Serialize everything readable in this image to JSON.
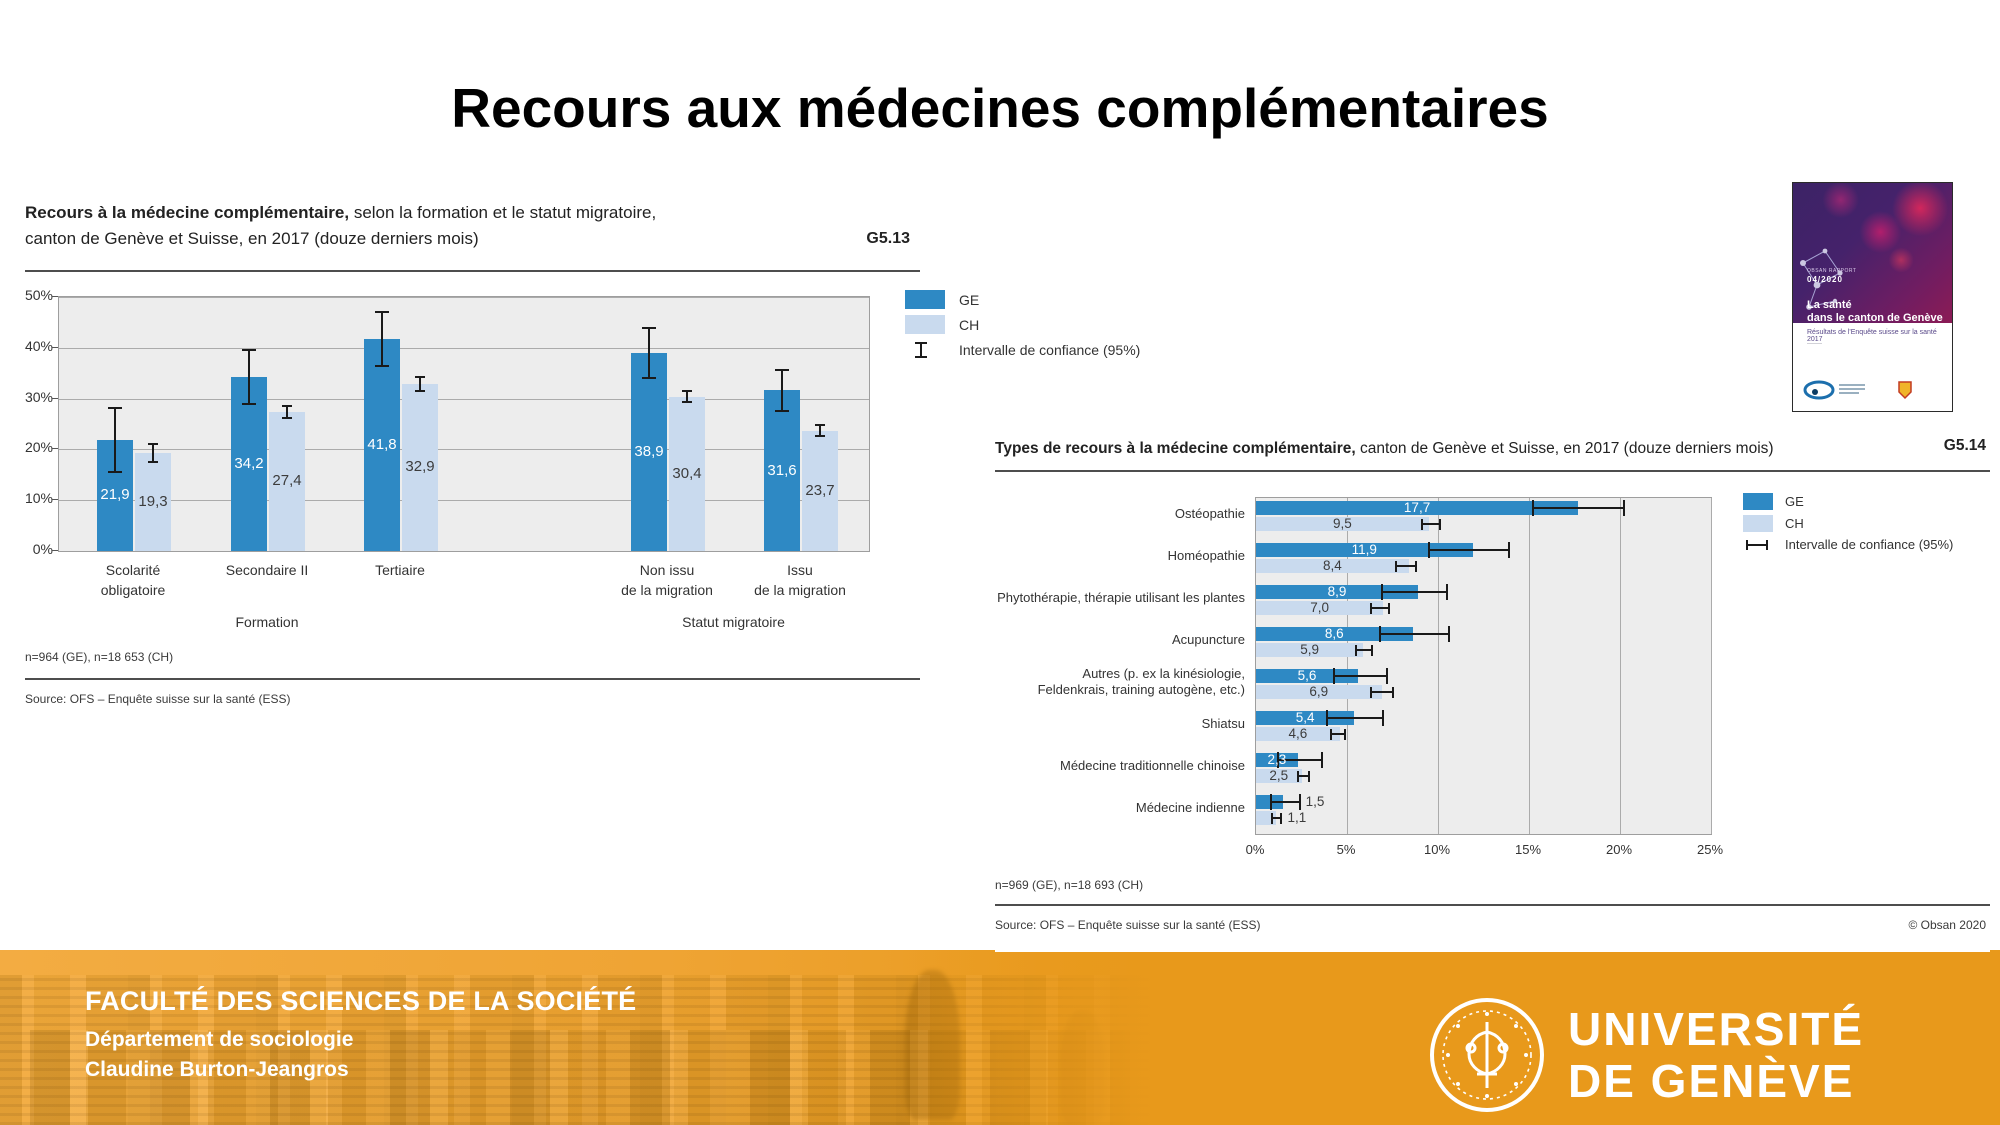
{
  "title": "Recours aux médecines complémentaires",
  "colors": {
    "ge": "#2E89C4",
    "ch": "#C9DAEE",
    "plot_bg": "#EDEDED",
    "grid": "#ABABAB",
    "footer_orange": "#E8991B"
  },
  "chart_data": [
    {
      "id": "G513",
      "type": "bar",
      "title_bold": "Recours à la médecine complémentaire,",
      "title_rest": " selon la formation et le statut migratoire,",
      "title_line2": "canton de Genève et Suisse, en 2017 (douze derniers mois)",
      "figure_id": "G5.13",
      "ylim": [
        0,
        50
      ],
      "yticks": [
        "0%",
        "10%",
        "20%",
        "30%",
        "40%",
        "50%"
      ],
      "categories": [
        [
          "Scolarité",
          "obligatoire"
        ],
        [
          "Secondaire II"
        ],
        [
          "Tertiaire"
        ],
        [
          "Non issu",
          "de la migration"
        ],
        [
          "Issu",
          "de la migration"
        ]
      ],
      "group_labels": [
        {
          "label": "Formation"
        },
        {
          "label": "Statut migratoire"
        }
      ],
      "series": [
        {
          "name": "GE",
          "values": [
            21.9,
            34.2,
            41.8,
            38.9,
            31.6
          ],
          "labels": [
            "21,9",
            "34,2",
            "41,8",
            "38,9",
            "31,6"
          ],
          "ci": [
            [
              15.5,
              28.2
            ],
            [
              29.0,
              39.5
            ],
            [
              36.4,
              47.0
            ],
            [
              34.0,
              43.8
            ],
            [
              27.6,
              35.6
            ]
          ]
        },
        {
          "name": "CH",
          "values": [
            19.3,
            27.4,
            32.9,
            30.4,
            23.7
          ],
          "labels": [
            "19,3",
            "27,4",
            "32,9",
            "30,4",
            "23,7"
          ],
          "ci": [
            [
              17.5,
              21.0
            ],
            [
              26.2,
              28.5
            ],
            [
              31.5,
              34.3
            ],
            [
              29.4,
              31.4
            ],
            [
              22.6,
              24.8
            ]
          ]
        }
      ],
      "legend": [
        {
          "label": "GE"
        },
        {
          "label": "CH"
        },
        {
          "label": "Intervalle de confiance (95%)"
        }
      ],
      "n_note": "n=964 (GE), n=18 653 (CH)",
      "source": "Source: OFS – Enquête suisse sur la santé (ESS)"
    },
    {
      "id": "G514",
      "type": "horizontal-bar",
      "title_bold": "Types de recours à la médecine complémentaire,",
      "title_rest": " canton de Genève et Suisse, en 2017 (douze derniers mois)",
      "figure_id": "G5.14",
      "xlim": [
        0,
        25
      ],
      "xticks": [
        "0%",
        "5%",
        "10%",
        "15%",
        "20%",
        "25%"
      ],
      "categories": [
        [
          "Ostéopathie"
        ],
        [
          "Homéopathie"
        ],
        [
          "Phytothérapie, thérapie utilisant les plantes"
        ],
        [
          "Acupuncture"
        ],
        [
          "Autres (p. ex la kinésiologie,",
          "Feldenkrais, training autogène, etc.)"
        ],
        [
          "Shiatsu"
        ],
        [
          "Médecine traditionnelle chinoise"
        ],
        [
          "Médecine indienne"
        ]
      ],
      "series": [
        {
          "name": "GE",
          "values": [
            17.7,
            11.9,
            8.9,
            8.6,
            5.6,
            5.4,
            2.3,
            1.5
          ],
          "labels": [
            "17,7",
            "11,9",
            "8,9",
            "8,6",
            "5,6",
            "5,4",
            "2,3",
            "1,5"
          ],
          "ci": [
            [
              15.2,
              20.2
            ],
            [
              9.5,
              13.9
            ],
            [
              6.9,
              10.5
            ],
            [
              6.8,
              10.6
            ],
            [
              4.3,
              7.2
            ],
            [
              3.9,
              7.0
            ],
            [
              1.2,
              3.6
            ],
            [
              0.8,
              2.4
            ]
          ]
        },
        {
          "name": "CH",
          "values": [
            9.5,
            8.4,
            7.0,
            5.9,
            6.9,
            4.6,
            2.5,
            1.1
          ],
          "labels": [
            "9,5",
            "8,4",
            "7,0",
            "5,9",
            "6,9",
            "4,6",
            "2,5",
            "1,1"
          ],
          "ci": [
            [
              9.1,
              10.1
            ],
            [
              7.7,
              8.8
            ],
            [
              6.3,
              7.3
            ],
            [
              5.5,
              6.4
            ],
            [
              6.3,
              7.5
            ],
            [
              4.1,
              4.9
            ],
            [
              2.3,
              2.9
            ],
            [
              0.9,
              1.4
            ]
          ]
        }
      ],
      "legend": [
        {
          "label": "GE"
        },
        {
          "label": "CH"
        },
        {
          "label": "Intervalle de confiance (95%)"
        }
      ],
      "n_note": "n=969 (GE), n=18 693 (CH)",
      "source": "Source: OFS – Enquête suisse sur la santé (ESS)",
      "copyright": "© Obsan 2020"
    }
  ],
  "report_cover": {
    "issue_label": "OBSAN RAPPORT",
    "issue": "04/2020",
    "title_line1": "La santé",
    "title_line2": "dans le canton de Genève",
    "subtitle": "Résultats de l'Enquête suisse sur la santé 2017"
  },
  "footer": {
    "faculty": "FACULTÉ DES SCIENCES DE LA SOCIÉTÉ",
    "department": "Département de sociologie",
    "author": "Claudine Burton-Jeangros",
    "university_line1": "UNIVERSITÉ",
    "university_line2": "DE GENÈVE"
  }
}
